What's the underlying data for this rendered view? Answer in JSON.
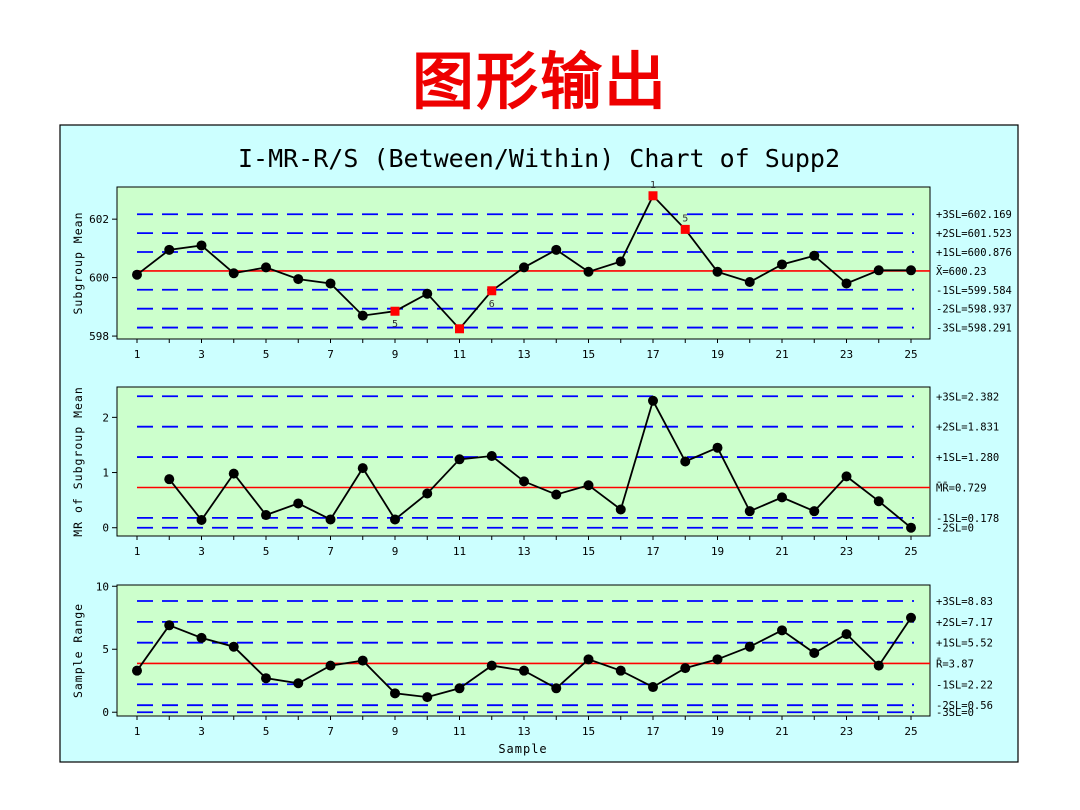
{
  "slide_heading": "图形输出",
  "chart_data": {
    "type": "line",
    "title": "I-MR-R/S (Between/Within) Chart of Supp2",
    "xlabel": "Sample",
    "x": [
      1,
      2,
      3,
      4,
      5,
      6,
      7,
      8,
      9,
      10,
      11,
      12,
      13,
      14,
      15,
      16,
      17,
      18,
      19,
      20,
      21,
      22,
      23,
      24,
      25
    ],
    "x_ticks": [
      1,
      3,
      5,
      7,
      9,
      11,
      13,
      15,
      17,
      19,
      21,
      23,
      25
    ],
    "colors": {
      "page_frame_bg": "#ccffff",
      "plot_bg": "#ccffcc",
      "center_line": "#ff0000",
      "sigma_lines": "#0000ff",
      "data_line": "#000000",
      "flagged_point": "#ff0000"
    },
    "panels": [
      {
        "ylabel": "Subgroup Mean",
        "ylim": [
          597.9,
          603.1
        ],
        "yticks": [
          598,
          600,
          602
        ],
        "values": [
          600.1,
          600.95,
          601.1,
          600.15,
          600.35,
          599.95,
          599.8,
          598.7,
          598.85,
          599.45,
          598.25,
          599.55,
          600.35,
          600.95,
          600.2,
          600.55,
          602.8,
          601.65,
          600.2,
          599.85,
          600.45,
          600.75,
          599.8,
          600.25,
          600.25
        ],
        "flagged": [
          9,
          11,
          12,
          17,
          18
        ],
        "flag_labels": [
          {
            "sample": 9,
            "text": "5"
          },
          {
            "sample": 12,
            "text": "6"
          },
          {
            "sample": 17,
            "text": "1"
          },
          {
            "sample": 18,
            "text": "5"
          }
        ],
        "limits": [
          {
            "label": "+3SL=602.169",
            "value": 602.169,
            "kind": "sigma"
          },
          {
            "label": "+2SL=601.523",
            "value": 601.523,
            "kind": "sigma"
          },
          {
            "label": "+1SL=600.876",
            "value": 600.876,
            "kind": "sigma"
          },
          {
            "label": "X̄=600.23",
            "value": 600.23,
            "kind": "center"
          },
          {
            "label": "-1SL=599.584",
            "value": 599.584,
            "kind": "sigma"
          },
          {
            "label": "-2SL=598.937",
            "value": 598.937,
            "kind": "sigma"
          },
          {
            "label": "-3SL=598.291",
            "value": 598.291,
            "kind": "sigma"
          }
        ]
      },
      {
        "ylabel": "MR of Subgroup Mean",
        "ylim": [
          -0.15,
          2.55
        ],
        "yticks": [
          0,
          1,
          2
        ],
        "values": [
          null,
          0.88,
          0.14,
          0.98,
          0.23,
          0.44,
          0.15,
          1.08,
          0.15,
          0.62,
          1.24,
          1.3,
          0.84,
          0.6,
          0.77,
          0.33,
          2.3,
          1.2,
          1.45,
          0.3,
          0.55,
          0.3,
          0.93,
          0.48,
          0.0
        ],
        "flagged": [],
        "flag_labels": [],
        "limits": [
          {
            "label": "+3SL=2.382",
            "value": 2.382,
            "kind": "sigma"
          },
          {
            "label": "+2SL=1.831",
            "value": 1.831,
            "kind": "sigma"
          },
          {
            "label": "+1SL=1.280",
            "value": 1.28,
            "kind": "sigma"
          },
          {
            "label": "M̄R̄=0.729",
            "value": 0.729,
            "kind": "center"
          },
          {
            "label": "-1SL=0.178",
            "value": 0.178,
            "kind": "sigma"
          },
          {
            "label": "-2SL=0",
            "value": 0.0,
            "kind": "sigma"
          }
        ]
      },
      {
        "ylabel": "Sample Range",
        "ylim": [
          -0.3,
          10.1
        ],
        "yticks": [
          0,
          5,
          10
        ],
        "values": [
          3.3,
          6.9,
          5.9,
          5.2,
          2.7,
          2.3,
          3.7,
          4.1,
          1.5,
          1.2,
          1.9,
          3.7,
          3.3,
          1.9,
          4.2,
          3.3,
          2.0,
          3.5,
          4.2,
          5.2,
          6.5,
          4.7,
          6.2,
          3.7,
          7.5
        ],
        "flagged": [],
        "flag_labels": [],
        "limits": [
          {
            "label": "+3SL=8.83",
            "value": 8.83,
            "kind": "sigma"
          },
          {
            "label": "+2SL=7.17",
            "value": 7.17,
            "kind": "sigma"
          },
          {
            "label": "+1SL=5.52",
            "value": 5.52,
            "kind": "sigma"
          },
          {
            "label": "R̄=3.87",
            "value": 3.87,
            "kind": "center"
          },
          {
            "label": "-1SL=2.22",
            "value": 2.22,
            "kind": "sigma"
          },
          {
            "label": "-2SL=0.56",
            "value": 0.56,
            "kind": "sigma"
          },
          {
            "label": "-3SL=0",
            "value": 0.0,
            "kind": "sigma"
          }
        ]
      }
    ]
  }
}
